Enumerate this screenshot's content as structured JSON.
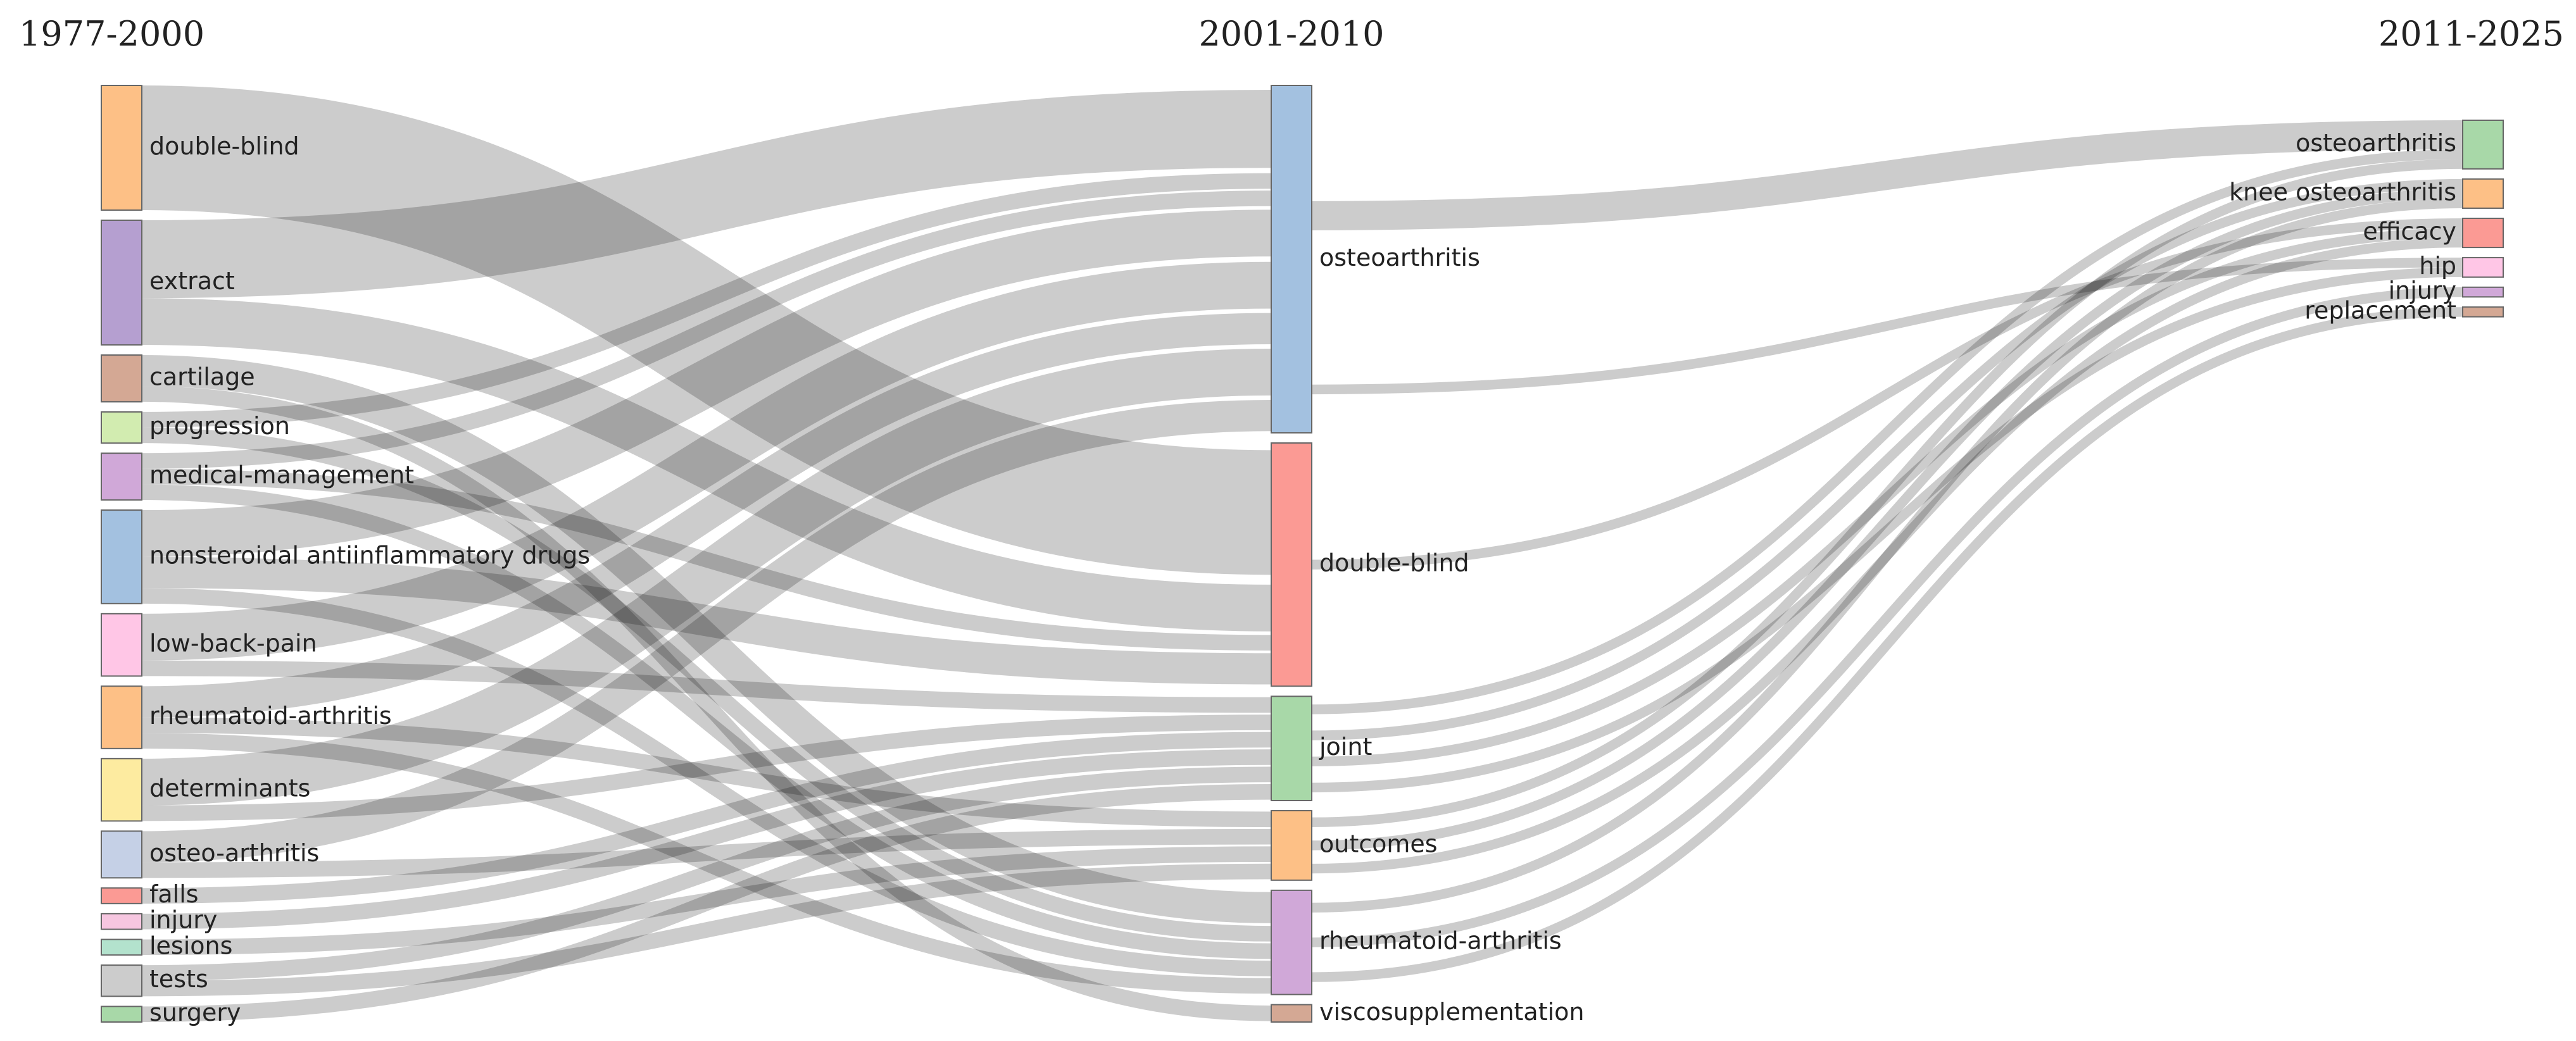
{
  "columns": [
    {
      "key": "c1",
      "title": "1977-2000"
    },
    {
      "key": "c2",
      "title": "2001-2010"
    },
    {
      "key": "c3",
      "title": "2011-2025"
    }
  ],
  "nodes": {
    "c1": [
      {
        "id": "a_doubleblind",
        "label": "double-blind",
        "color": "#fdc086"
      },
      {
        "id": "a_extract",
        "label": "extract",
        "color": "#b59fd0"
      },
      {
        "id": "a_cartilage",
        "label": "cartilage",
        "color": "#d4a894"
      },
      {
        "id": "a_progression",
        "label": "progression",
        "color": "#d2ecb0"
      },
      {
        "id": "a_medical",
        "label": "medical-management",
        "color": "#d0a8d8"
      },
      {
        "id": "a_nsaid",
        "label": "nonsteroidal antiinflammatory drugs",
        "color": "#a3c1e0"
      },
      {
        "id": "a_lowback",
        "label": "low-back-pain",
        "color": "#ffc6e6"
      },
      {
        "id": "a_ra",
        "label": "rheumatoid-arthritis",
        "color": "#fdc086"
      },
      {
        "id": "a_determinants",
        "label": "determinants",
        "color": "#fdeba0"
      },
      {
        "id": "a_osteoarth",
        "label": "osteo-arthritis",
        "color": "#c5d0e6"
      },
      {
        "id": "a_falls",
        "label": "falls",
        "color": "#fb9a94"
      },
      {
        "id": "a_injury",
        "label": "injury",
        "color": "#f6c6e0"
      },
      {
        "id": "a_lesions",
        "label": "lesions",
        "color": "#b3e2cd"
      },
      {
        "id": "a_tests",
        "label": "tests",
        "color": "#cccccc"
      },
      {
        "id": "a_surgery",
        "label": "surgery",
        "color": "#a8d8a8"
      }
    ],
    "c2": [
      {
        "id": "b_oa",
        "label": "osteoarthritis",
        "color": "#a3c1e0"
      },
      {
        "id": "b_doubleblind",
        "label": "double-blind",
        "color": "#fb9a94"
      },
      {
        "id": "b_joint",
        "label": "joint",
        "color": "#a8d8a8"
      },
      {
        "id": "b_outcomes",
        "label": "outcomes",
        "color": "#fdc086"
      },
      {
        "id": "b_ra",
        "label": "rheumatoid-arthritis",
        "color": "#d0a8d8"
      },
      {
        "id": "b_visco",
        "label": "viscosupplementation",
        "color": "#d4a894"
      }
    ],
    "c3": [
      {
        "id": "c_oa",
        "label": "osteoarthritis",
        "color": "#a8d8a8"
      },
      {
        "id": "c_knee",
        "label": "knee osteoarthritis",
        "color": "#fdc086"
      },
      {
        "id": "c_efficacy",
        "label": "efficacy",
        "color": "#fb9a94"
      },
      {
        "id": "c_hip",
        "label": "hip",
        "color": "#ffc6e6"
      },
      {
        "id": "c_injury",
        "label": "injury",
        "color": "#d0a8d8"
      },
      {
        "id": "c_replacement",
        "label": "replacement",
        "color": "#d4a894"
      }
    ]
  },
  "links": [
    {
      "source": "a_doubleblind",
      "target": "b_doubleblind",
      "value": 8
    },
    {
      "source": "a_extract",
      "target": "b_oa",
      "value": 5
    },
    {
      "source": "a_extract",
      "target": "b_doubleblind",
      "value": 3
    },
    {
      "source": "a_cartilage",
      "target": "b_ra",
      "value": 2
    },
    {
      "source": "a_cartilage",
      "target": "b_visco",
      "value": 1
    },
    {
      "source": "a_progression",
      "target": "b_oa",
      "value": 1
    },
    {
      "source": "a_progression",
      "target": "b_ra",
      "value": 1
    },
    {
      "source": "a_medical",
      "target": "b_ra",
      "value": 1
    },
    {
      "source": "a_medical",
      "target": "b_doubleblind",
      "value": 1
    },
    {
      "source": "a_medical",
      "target": "b_oa",
      "value": 1
    },
    {
      "source": "a_nsaid",
      "target": "b_oa",
      "value": 3
    },
    {
      "source": "a_nsaid",
      "target": "b_doubleblind",
      "value": 2
    },
    {
      "source": "a_nsaid",
      "target": "b_ra",
      "value": 1
    },
    {
      "source": "a_lowback",
      "target": "b_oa",
      "value": 3
    },
    {
      "source": "a_lowback",
      "target": "b_joint",
      "value": 1
    },
    {
      "source": "a_ra",
      "target": "b_oa",
      "value": 2
    },
    {
      "source": "a_ra",
      "target": "b_outcomes",
      "value": 1
    },
    {
      "source": "a_ra",
      "target": "b_ra",
      "value": 1
    },
    {
      "source": "a_determinants",
      "target": "b_oa",
      "value": 3
    },
    {
      "source": "a_determinants",
      "target": "b_joint",
      "value": 1
    },
    {
      "source": "a_osteoarth",
      "target": "b_oa",
      "value": 2
    },
    {
      "source": "a_osteoarth",
      "target": "b_outcomes",
      "value": 1
    },
    {
      "source": "a_falls",
      "target": "b_joint",
      "value": 1
    },
    {
      "source": "a_injury",
      "target": "b_joint",
      "value": 1
    },
    {
      "source": "a_lesions",
      "target": "b_outcomes",
      "value": 1
    },
    {
      "source": "a_tests",
      "target": "b_joint",
      "value": 1
    },
    {
      "source": "a_tests",
      "target": "b_outcomes",
      "value": 1
    },
    {
      "source": "a_surgery",
      "target": "b_joint",
      "value": 1
    },
    {
      "source": "b_oa",
      "target": "c_oa",
      "value": 3
    },
    {
      "source": "b_oa",
      "target": "c_hip",
      "value": 1
    },
    {
      "source": "b_doubleblind",
      "target": "c_efficacy",
      "value": 1
    },
    {
      "source": "b_joint",
      "target": "c_oa",
      "value": 1
    },
    {
      "source": "b_joint",
      "target": "c_knee",
      "value": 1
    },
    {
      "source": "b_joint",
      "target": "c_efficacy",
      "value": 1
    },
    {
      "source": "b_joint",
      "target": "c_hip",
      "value": 1
    },
    {
      "source": "b_outcomes",
      "target": "c_oa",
      "value": 1
    },
    {
      "source": "b_outcomes",
      "target": "c_knee",
      "value": 1
    },
    {
      "source": "b_outcomes",
      "target": "c_efficacy",
      "value": 1
    },
    {
      "source": "b_ra",
      "target": "c_knee",
      "value": 1
    },
    {
      "source": "b_ra",
      "target": "c_injury",
      "value": 1
    },
    {
      "source": "b_ra",
      "target": "c_replacement",
      "value": 1
    }
  ]
}
